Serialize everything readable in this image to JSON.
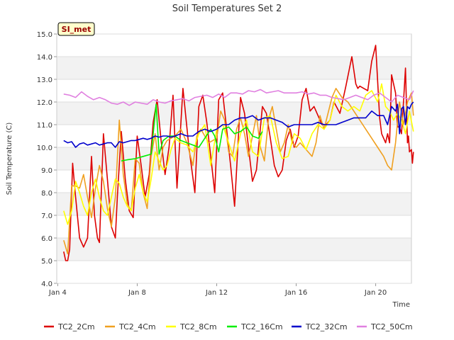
{
  "chart_data": {
    "type": "line",
    "title": "Soil Temperatures Set 2",
    "xlabel": "Time",
    "ylabel": "Soil Temperature (C)",
    "badge": "SI_met",
    "xlim_days": [
      3.95,
      21.8
    ],
    "ylim": [
      4.0,
      15.0
    ],
    "yticks": [
      4.0,
      5.0,
      6.0,
      7.0,
      8.0,
      9.0,
      10.0,
      11.0,
      12.0,
      13.0,
      14.0,
      15.0
    ],
    "ytick_labels": [
      "4.0",
      "5.0",
      "6.0",
      "7.0",
      "8.0",
      "9.0",
      "10.0",
      "11.0",
      "12.0",
      "13.0",
      "14.0",
      "15.0"
    ],
    "xticks": [
      4,
      8,
      12,
      16,
      20
    ],
    "xtick_labels": [
      "Jan 4",
      "Jan 8",
      "Jan 12",
      "Jan 16",
      "Jan 20"
    ],
    "grid": "horizontal alternating bands",
    "legend_position": "bottom",
    "series": [
      {
        "name": "TC2_2Cm",
        "color": "#dd0000",
        "x": [
          4.3,
          4.4,
          4.5,
          4.6,
          4.75,
          4.9,
          5.1,
          5.3,
          5.5,
          5.7,
          5.85,
          6.0,
          6.1,
          6.3,
          6.5,
          6.7,
          6.9,
          7.0,
          7.2,
          7.4,
          7.6,
          7.8,
          8.0,
          8.2,
          8.4,
          8.6,
          8.8,
          9.0,
          9.2,
          9.4,
          9.6,
          9.8,
          10.0,
          10.3,
          10.6,
          10.9,
          11.1,
          11.3,
          11.5,
          11.7,
          11.9,
          12.1,
          12.3,
          12.5,
          12.7,
          12.9,
          13.2,
          13.4,
          13.6,
          13.8,
          14.0,
          14.3,
          14.5,
          14.7,
          14.9,
          15.1,
          15.3,
          15.5,
          15.7,
          15.9,
          16.1,
          16.3,
          16.5,
          16.7,
          16.9,
          17.1,
          17.3,
          17.5,
          17.7,
          17.9,
          18.2,
          18.5,
          18.8,
          19.0,
          19.1,
          19.2,
          19.4,
          19.6,
          19.8,
          20.0,
          20.2,
          20.3,
          20.5,
          20.6,
          20.7,
          20.8,
          21.0,
          21.1,
          21.2,
          21.3,
          21.4,
          21.5,
          21.6,
          21.65,
          21.7,
          21.8,
          21.85,
          21.9
        ],
        "y": [
          5.4,
          5.0,
          5.0,
          5.5,
          9.3,
          7.8,
          6.0,
          5.6,
          6.0,
          9.6,
          7.0,
          6.0,
          5.8,
          10.6,
          8.6,
          6.5,
          6.0,
          7.8,
          10.7,
          8.6,
          7.2,
          6.9,
          10.5,
          9.2,
          7.8,
          8.8,
          11.1,
          12.1,
          10.3,
          8.8,
          10.0,
          12.3,
          8.2,
          12.6,
          10.0,
          8.0,
          11.8,
          12.3,
          11.1,
          9.6,
          8.0,
          12.1,
          12.4,
          10.8,
          9.2,
          7.4,
          12.2,
          11.5,
          10.0,
          8.5,
          9.0,
          11.8,
          11.5,
          10.4,
          9.2,
          8.7,
          9.0,
          10.3,
          10.8,
          10.0,
          10.5,
          12.1,
          12.6,
          11.6,
          11.8,
          11.4,
          11.0,
          11.0,
          11.2,
          12.0,
          11.5,
          12.7,
          14.0,
          12.8,
          12.6,
          12.7,
          12.6,
          12.5,
          13.8,
          14.5,
          11.3,
          10.6,
          10.2,
          10.6,
          10.2,
          13.2,
          12.4,
          10.9,
          10.9,
          10.6,
          12.0,
          13.5,
          10.2,
          10.5,
          9.8,
          9.9,
          9.3,
          9.8
        ]
      },
      {
        "name": "TC2_4Cm",
        "color": "#f0a020",
        "x": [
          4.3,
          4.5,
          4.7,
          4.9,
          5.1,
          5.3,
          5.5,
          5.7,
          5.9,
          6.1,
          6.3,
          6.5,
          6.7,
          6.9,
          7.1,
          7.3,
          7.5,
          7.7,
          7.9,
          8.1,
          8.3,
          8.5,
          8.7,
          8.9,
          9.1,
          9.3,
          9.5,
          9.7,
          9.9,
          10.2,
          10.5,
          10.8,
          11.0,
          11.2,
          11.4,
          11.6,
          11.8,
          12.0,
          12.2,
          12.4,
          12.6,
          12.8,
          13.0,
          13.2,
          13.4,
          13.6,
          13.8,
          14.0,
          14.2,
          14.4,
          14.6,
          14.8,
          15.0,
          15.2,
          15.4,
          15.6,
          15.8,
          16.0,
          16.2,
          16.4,
          16.6,
          16.8,
          17.0,
          17.2,
          17.4,
          17.6,
          17.8,
          18.0,
          18.3,
          18.6,
          18.9,
          19.2,
          19.5,
          19.8,
          20.1,
          20.4,
          20.6,
          20.8,
          21.0,
          21.2,
          21.4,
          21.6,
          21.8,
          21.9
        ],
        "y": [
          5.9,
          5.3,
          8.3,
          8.3,
          8.2,
          8.8,
          7.8,
          6.9,
          8.2,
          9.2,
          8.5,
          7.3,
          6.5,
          7.8,
          11.2,
          8.8,
          7.5,
          7.2,
          9.5,
          9.3,
          8.0,
          7.3,
          9.6,
          10.6,
          9.0,
          10.0,
          10.3,
          10.4,
          10.5,
          10.8,
          10.2,
          9.2,
          10.5,
          10.8,
          10.5,
          10.2,
          10.3,
          10.4,
          11.6,
          11.2,
          9.8,
          9.6,
          10.8,
          11.3,
          10.6,
          9.6,
          10.5,
          11.4,
          10.0,
          9.4,
          11.2,
          11.8,
          10.8,
          9.8,
          10.2,
          11.0,
          10.2,
          10.0,
          10.2,
          10.0,
          9.8,
          9.6,
          10.2,
          11.4,
          10.8,
          11.5,
          12.2,
          12.6,
          12.2,
          12.0,
          11.6,
          11.2,
          10.8,
          10.4,
          10.0,
          9.6,
          9.2,
          9.0,
          10.2,
          12.0,
          11.0,
          12.0,
          12.4,
          11.4
        ]
      },
      {
        "name": "TC2_8Cm",
        "color": "#ffff00",
        "x": [
          4.3,
          4.5,
          4.7,
          4.9,
          5.1,
          5.3,
          5.5,
          5.7,
          5.9,
          6.1,
          6.3,
          6.5,
          6.7,
          6.9,
          7.1,
          7.3,
          7.5,
          7.7,
          7.9,
          8.1,
          8.3,
          8.5,
          8.7,
          8.9,
          9.1,
          9.3,
          9.5,
          9.7,
          9.9,
          10.2,
          10.5,
          10.8,
          11.1,
          11.4,
          11.7,
          12.0,
          12.3,
          12.6,
          12.9,
          13.2,
          13.5,
          13.8,
          14.1,
          14.4,
          14.7,
          15.0,
          15.3,
          15.6,
          15.9,
          16.2,
          16.5,
          16.8,
          17.1,
          17.4,
          17.7,
          18.0,
          18.3,
          18.6,
          18.9,
          19.2,
          19.5,
          19.8,
          20.1,
          20.3,
          20.5,
          20.7,
          20.9,
          21.1,
          21.3,
          21.5,
          21.7,
          21.9
        ],
        "y": [
          7.2,
          6.6,
          7.2,
          8.5,
          8.0,
          7.4,
          7.0,
          8.0,
          8.6,
          7.8,
          7.2,
          7.0,
          7.8,
          8.6,
          8.4,
          7.8,
          7.4,
          7.2,
          8.2,
          8.8,
          8.0,
          7.6,
          8.6,
          9.8,
          9.4,
          9.0,
          9.2,
          9.9,
          10.4,
          10.2,
          10.1,
          9.8,
          10.6,
          11.0,
          9.2,
          10.8,
          11.0,
          10.2,
          9.4,
          10.6,
          11.2,
          9.8,
          9.6,
          11.3,
          11.4,
          10.2,
          9.5,
          9.6,
          10.6,
          10.4,
          9.9,
          10.6,
          11.0,
          10.8,
          11.2,
          12.3,
          11.8,
          11.6,
          11.8,
          11.6,
          12.3,
          12.5,
          12.0,
          12.8,
          11.8,
          11.6,
          11.2,
          11.5,
          11.2,
          10.6,
          11.6,
          10.7
        ]
      },
      {
        "name": "TC2_16Cm",
        "color": "#00ee00",
        "x": [
          7.2,
          7.5,
          7.9,
          8.3,
          8.7,
          8.95,
          9.1,
          9.3,
          9.6,
          9.9,
          10.2,
          10.5,
          10.8,
          11.1,
          11.4,
          11.7,
          11.9,
          12.1,
          12.3,
          12.6,
          12.9,
          13.2,
          13.5,
          13.8,
          14.1,
          14.3
        ],
        "y": [
          9.4,
          9.45,
          9.5,
          9.6,
          9.7,
          11.9,
          9.7,
          10.3,
          10.5,
          10.5,
          10.3,
          10.2,
          10.1,
          10.0,
          10.4,
          10.8,
          10.5,
          9.8,
          10.8,
          10.9,
          10.6,
          10.7,
          10.9,
          10.5,
          10.4,
          10.7
        ]
      },
      {
        "name": "TC2_32Cm",
        "color": "#0000cc",
        "x": [
          4.3,
          4.5,
          4.7,
          4.9,
          5.1,
          5.3,
          5.5,
          5.7,
          5.9,
          6.1,
          6.3,
          6.5,
          6.7,
          6.9,
          7.1,
          7.3,
          7.5,
          7.7,
          7.9,
          8.1,
          8.3,
          8.5,
          8.7,
          8.9,
          9.1,
          9.3,
          9.5,
          9.7,
          9.9,
          10.2,
          10.5,
          10.8,
          11.1,
          11.4,
          11.7,
          12.0,
          12.3,
          12.6,
          12.9,
          13.2,
          13.5,
          13.8,
          14.1,
          14.4,
          14.7,
          15.0,
          15.3,
          15.6,
          15.9,
          16.2,
          16.5,
          16.8,
          17.1,
          17.4,
          17.7,
          18.0,
          18.3,
          18.6,
          18.9,
          19.2,
          19.5,
          19.8,
          20.1,
          20.4,
          20.6,
          20.8,
          21.0,
          21.1,
          21.2,
          21.3,
          21.4,
          21.5,
          21.6,
          21.7,
          21.8,
          21.9
        ],
        "y": [
          10.3,
          10.2,
          10.25,
          10.0,
          10.15,
          10.2,
          10.1,
          10.15,
          10.2,
          10.1,
          10.15,
          10.2,
          10.2,
          10.0,
          10.25,
          10.2,
          10.25,
          10.3,
          10.3,
          10.35,
          10.4,
          10.35,
          10.4,
          10.5,
          10.45,
          10.5,
          10.5,
          10.45,
          10.5,
          10.6,
          10.5,
          10.5,
          10.7,
          10.8,
          10.7,
          10.8,
          11.0,
          11.0,
          11.2,
          11.3,
          11.3,
          11.4,
          11.2,
          11.3,
          11.3,
          11.2,
          11.1,
          10.9,
          11.0,
          11.0,
          11.0,
          11.0,
          11.1,
          11.0,
          11.0,
          11.0,
          11.1,
          11.2,
          11.3,
          11.3,
          11.3,
          11.6,
          11.4,
          11.4,
          11.0,
          11.8,
          11.6,
          11.9,
          10.6,
          11.7,
          11.8,
          11.0,
          11.8,
          11.7,
          11.9,
          12.0
        ]
      },
      {
        "name": "TC2_50Cm",
        "color": "#e080e0",
        "x": [
          4.3,
          4.6,
          4.9,
          5.2,
          5.5,
          5.8,
          6.1,
          6.4,
          6.7,
          7.0,
          7.3,
          7.6,
          7.9,
          8.2,
          8.5,
          8.8,
          9.1,
          9.4,
          9.7,
          10.0,
          10.3,
          10.6,
          10.9,
          11.2,
          11.5,
          11.8,
          12.1,
          12.4,
          12.7,
          13.0,
          13.3,
          13.6,
          13.9,
          14.2,
          14.5,
          14.8,
          15.1,
          15.4,
          15.7,
          16.0,
          16.3,
          16.6,
          16.9,
          17.2,
          17.5,
          17.8,
          18.1,
          18.4,
          18.7,
          19.0,
          19.3,
          19.6,
          19.9,
          20.2,
          20.5,
          20.8,
          21.1,
          21.4,
          21.7,
          21.9
        ],
        "y": [
          12.35,
          12.3,
          12.2,
          12.45,
          12.25,
          12.1,
          12.2,
          12.1,
          11.95,
          11.9,
          12.0,
          11.85,
          12.0,
          11.95,
          11.9,
          12.1,
          12.0,
          11.95,
          12.05,
          12.1,
          12.15,
          12.05,
          12.2,
          12.25,
          12.3,
          12.2,
          12.35,
          12.2,
          12.4,
          12.4,
          12.35,
          12.5,
          12.45,
          12.55,
          12.4,
          12.45,
          12.5,
          12.4,
          12.4,
          12.4,
          12.45,
          12.35,
          12.4,
          12.3,
          12.3,
          12.2,
          12.15,
          12.1,
          12.2,
          12.3,
          12.2,
          12.1,
          12.3,
          12.4,
          12.2,
          12.0,
          12.3,
          12.2,
          12.1,
          12.5
        ]
      }
    ]
  }
}
